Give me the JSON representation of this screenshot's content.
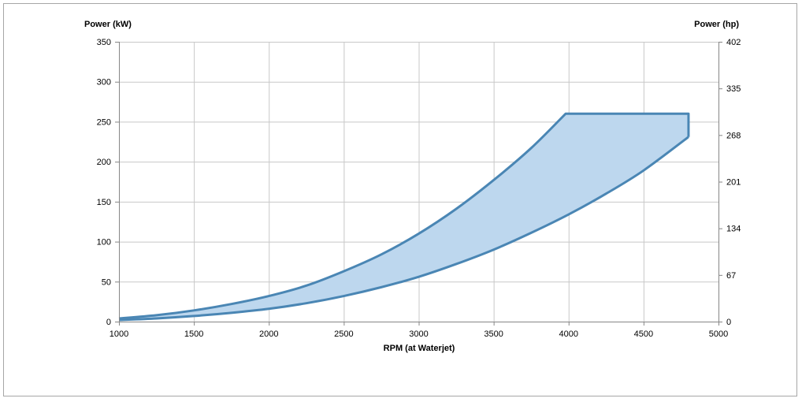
{
  "chart_data": {
    "type": "area",
    "title": "",
    "xlabel": "RPM (at Waterjet)",
    "ylabel": "Power (kW)",
    "y2label": "Power (hp)",
    "xlim": [
      1000,
      5000
    ],
    "ylim": [
      0,
      350
    ],
    "y2lim": [
      0,
      402
    ],
    "x_ticks": [
      1000,
      1500,
      2000,
      2500,
      3000,
      3500,
      4000,
      4500,
      5000
    ],
    "y_ticks": [
      0,
      50,
      100,
      150,
      200,
      250,
      300,
      350
    ],
    "y2_ticks": [
      0,
      67,
      134,
      201,
      268,
      335,
      402
    ],
    "grid": true,
    "legend": "none",
    "fill_color": "#bdd7ee",
    "line_color": "#4a86b4",
    "series": [
      {
        "values": [
          [
            1000,
            4
          ],
          [
            1250,
            8
          ],
          [
            1500,
            14
          ],
          [
            1750,
            22
          ],
          [
            2000,
            32
          ],
          [
            2250,
            45
          ],
          [
            2500,
            63
          ],
          [
            2750,
            84
          ],
          [
            3000,
            110
          ],
          [
            3250,
            141
          ],
          [
            3500,
            177
          ],
          [
            3750,
            217
          ],
          [
            3980,
            260
          ],
          [
            4800,
            260
          ]
        ]
      },
      {
        "values": [
          [
            1000,
            2
          ],
          [
            1250,
            4
          ],
          [
            1500,
            7
          ],
          [
            1750,
            11
          ],
          [
            2000,
            16
          ],
          [
            2250,
            23
          ],
          [
            2500,
            32
          ],
          [
            2750,
            43
          ],
          [
            3000,
            56
          ],
          [
            3250,
            72
          ],
          [
            3500,
            90
          ],
          [
            3750,
            111
          ],
          [
            4000,
            134
          ],
          [
            4250,
            160
          ],
          [
            4500,
            189
          ],
          [
            4800,
            231
          ]
        ]
      }
    ]
  }
}
